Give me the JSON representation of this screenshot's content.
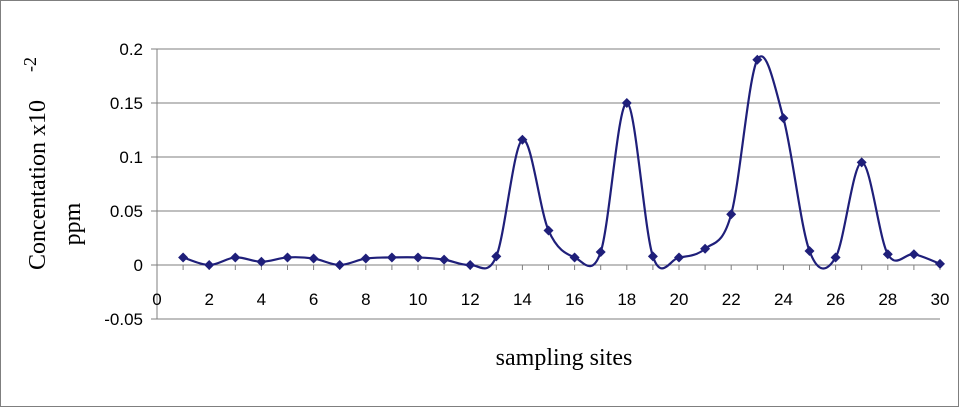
{
  "chart_data": {
    "type": "line",
    "smooth": true,
    "marker": "diamond",
    "color": "#1f1f7a",
    "ylabel": "Concentation x10",
    "ylabel_exponent": "-2",
    "ylabel_unit": "ppm",
    "xlabel": "sampling sites",
    "xlim": [
      0,
      30
    ],
    "ylim": [
      -0.05,
      0.2
    ],
    "grid": "horizontal",
    "x_ticks": [
      "0",
      "2",
      "4",
      "6",
      "8",
      "10",
      "12",
      "14",
      "16",
      "18",
      "20",
      "22",
      "24",
      "26",
      "28",
      "30"
    ],
    "y_ticks": [
      "0.2",
      "0.15",
      "0.1",
      "0.05",
      "0",
      "-0.05"
    ],
    "x": [
      1,
      2,
      3,
      4,
      5,
      6,
      7,
      8,
      9,
      10,
      11,
      12,
      13,
      14,
      15,
      16,
      17,
      18,
      19,
      20,
      21,
      22,
      23,
      24,
      25,
      26,
      27,
      28,
      29,
      30
    ],
    "y": [
      0.007,
      0.0,
      0.007,
      0.003,
      0.007,
      0.006,
      0.0,
      0.006,
      0.007,
      0.007,
      0.005,
      0.0,
      0.008,
      0.116,
      0.032,
      0.007,
      0.012,
      0.15,
      0.008,
      0.007,
      0.015,
      0.047,
      0.19,
      0.136,
      0.013,
      0.007,
      0.095,
      0.01,
      0.01,
      0.001
    ]
  }
}
